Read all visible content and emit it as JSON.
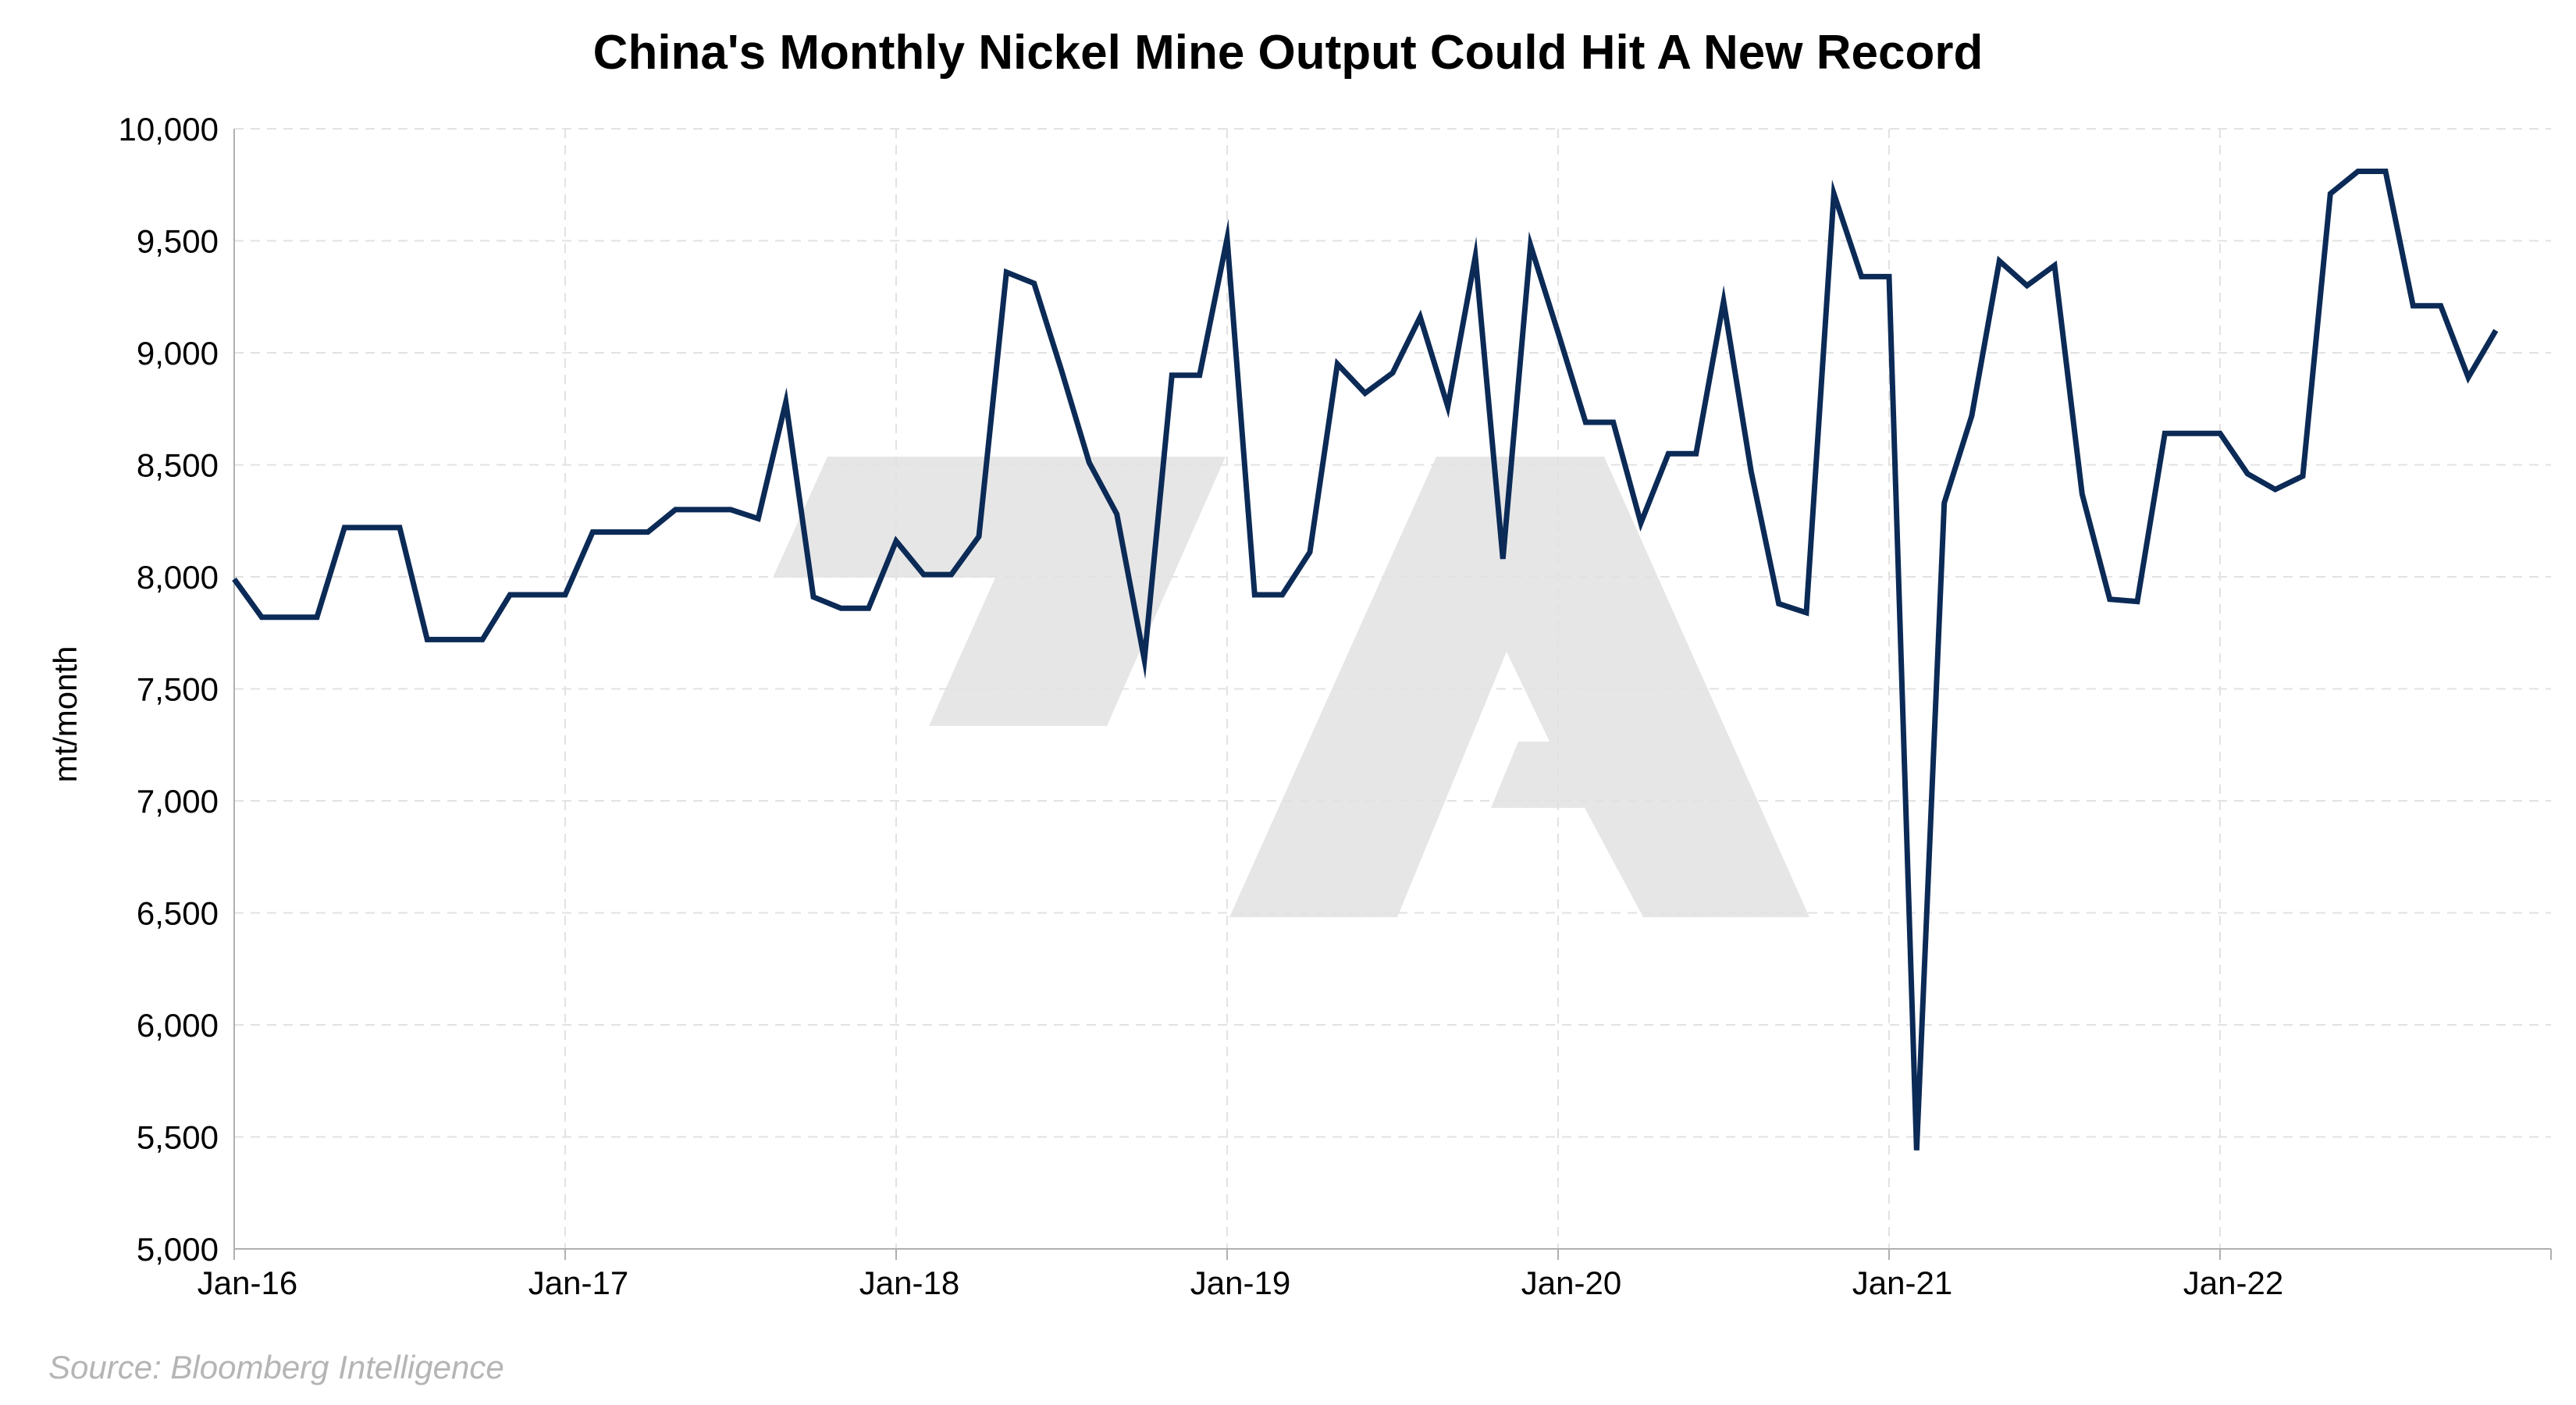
{
  "chart_data": {
    "type": "line",
    "title": "China's Monthly Nickel Mine Output Could Hit A New Record",
    "ylabel": "mt/month",
    "xlabel": "",
    "ylim": [
      5000,
      10000
    ],
    "y_ticks": [
      5000,
      5500,
      6000,
      6500,
      7000,
      7500,
      8000,
      8500,
      9000,
      9500,
      10000
    ],
    "y_tick_labels": [
      "5,000",
      "5,500",
      "6,000",
      "6,500",
      "7,000",
      "7,500",
      "8,000",
      "8,500",
      "9,000",
      "9,500",
      "10,000"
    ],
    "x_ticks": [
      "2016-01",
      "2017-01",
      "2018-01",
      "2019-01",
      "2020-01",
      "2021-01",
      "2022-01"
    ],
    "x_tick_labels": [
      "Jan-16",
      "Jan-17",
      "Jan-18",
      "Jan-19",
      "Jan-20",
      "Jan-21",
      "Jan-22"
    ],
    "xlim": [
      "2016-01",
      "2023-01"
    ],
    "grid": true,
    "legend": "none",
    "line_color": "#0b2a56",
    "series": [
      {
        "x": [
          "2016-01",
          "2016-02",
          "2016-03",
          "2016-04",
          "2016-05",
          "2016-06",
          "2016-07",
          "2016-08",
          "2016-09",
          "2016-10",
          "2016-11",
          "2016-12",
          "2017-01",
          "2017-02",
          "2017-03",
          "2017-04",
          "2017-05",
          "2017-06",
          "2017-07",
          "2017-08",
          "2017-09",
          "2017-10",
          "2017-11",
          "2017-12",
          "2018-01",
          "2018-02",
          "2018-03",
          "2018-04",
          "2018-05",
          "2018-06",
          "2018-07",
          "2018-08",
          "2018-09",
          "2018-10",
          "2018-11",
          "2018-12",
          "2019-01",
          "2019-02",
          "2019-03",
          "2019-04",
          "2019-05",
          "2019-06",
          "2019-07",
          "2019-08",
          "2019-09",
          "2019-10",
          "2019-11",
          "2019-12",
          "2020-01",
          "2020-02",
          "2020-03",
          "2020-04",
          "2020-05",
          "2020-06",
          "2020-07",
          "2020-08",
          "2020-09",
          "2020-10",
          "2020-11",
          "2020-12",
          "2021-01",
          "2021-02",
          "2021-03",
          "2021-04",
          "2021-05",
          "2021-06",
          "2021-07",
          "2021-08",
          "2021-09",
          "2021-10",
          "2021-11",
          "2021-12",
          "2022-01",
          "2022-02",
          "2022-03",
          "2022-04",
          "2022-05",
          "2022-06",
          "2022-07",
          "2022-08",
          "2022-09",
          "2022-10",
          "2022-11"
        ],
        "y": [
          7990,
          7820,
          7820,
          7820,
          8220,
          8220,
          8220,
          7720,
          7720,
          7720,
          7920,
          7920,
          7920,
          8200,
          8200,
          8200,
          8300,
          8300,
          8300,
          8260,
          8780,
          7910,
          7860,
          7860,
          8160,
          8010,
          8010,
          8180,
          9360,
          9310,
          8920,
          8510,
          8280,
          7630,
          8900,
          8900,
          9510,
          7920,
          7920,
          8110,
          8950,
          8820,
          8910,
          9160,
          8760,
          9430,
          8080,
          9480,
          9090,
          8690,
          8690,
          8240,
          8550,
          8550,
          9230,
          8470,
          7880,
          7840,
          9710,
          9340,
          9340,
          5440,
          8330,
          8720,
          9410,
          9300,
          9390,
          8370,
          7900,
          7890,
          8640,
          8640,
          8640,
          8460,
          8390,
          8450,
          9710,
          9810,
          9810,
          9210,
          9210,
          8890,
          9100
        ]
      }
    ]
  },
  "watermark": "logo-watermark",
  "source": "Source: Bloomberg Intelligence"
}
